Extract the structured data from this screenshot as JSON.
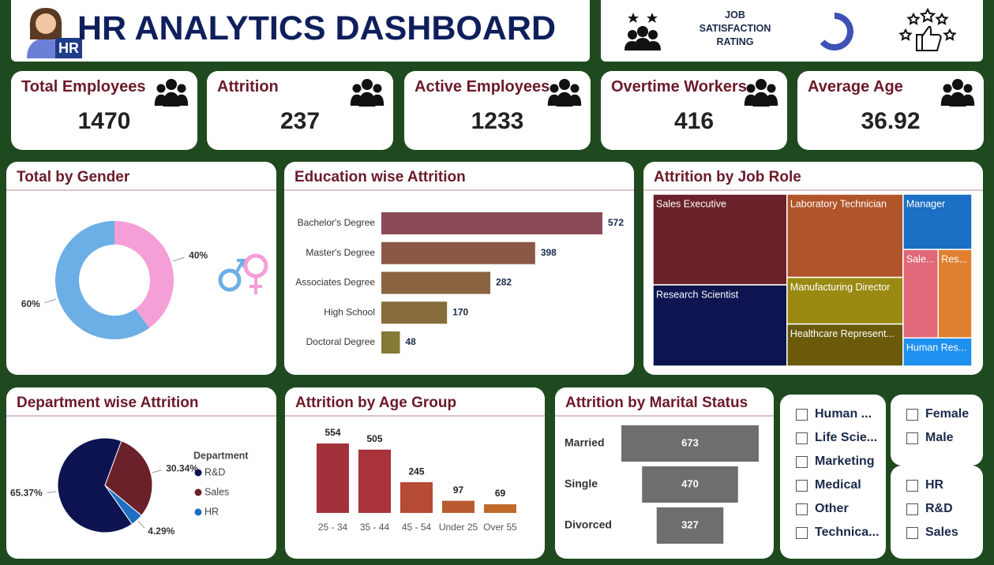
{
  "header": {
    "title": "HR ANALYTICS DASHBOARD",
    "badge": "HR"
  },
  "job_satisfaction": {
    "label": "JOB SATISFACTION RATING"
  },
  "kpis": [
    {
      "label": "Total Employees",
      "value": 1470
    },
    {
      "label": "Attrition",
      "value": 237
    },
    {
      "label": "Active Employees",
      "value": 1233
    },
    {
      "label": "Overtime Workers",
      "value": 416
    },
    {
      "label": "Average Age",
      "value": 36.92
    }
  ],
  "chart_data": [
    {
      "type": "donut",
      "title": "Total by Gender",
      "values": [
        40,
        60
      ],
      "value_labels": [
        "40%",
        "60%"
      ],
      "colors": [
        "#f59fd7",
        "#6caee6"
      ]
    },
    {
      "type": "hbar",
      "title": "Education wise Attrition",
      "categories": [
        "Bachelor's Degree",
        "Master's Degree",
        "Associates Degree",
        "High School",
        "Doctoral Degree"
      ],
      "values": [
        572,
        398,
        282,
        170,
        48
      ],
      "colors": [
        "#8a4a56",
        "#8b5848",
        "#8a6440",
        "#856c3a",
        "#857a36"
      ]
    },
    {
      "type": "treemap",
      "title": "Attrition by Job Role",
      "categories": [
        "Sales Executive",
        "Research Scientist",
        "Laboratory Technician",
        "Manufacturing Director",
        "Healthcare Represent...",
        "Manager",
        "Sale...",
        "Res...",
        "Human Res..."
      ],
      "values": [
        326,
        292,
        259,
        145,
        131,
        102,
        83,
        80,
        52
      ],
      "colors": [
        "#6b2129",
        "#0d1450",
        "#b0542a",
        "#9a8a12",
        "#6a5a0a",
        "#1b6fc4",
        "#e06878",
        "#e08030",
        "#1e90f0"
      ]
    },
    {
      "type": "pie",
      "title": "Department wise Attrition",
      "legend_title": "Department",
      "categories": [
        "R&D",
        "Sales",
        "HR"
      ],
      "values": [
        65.37,
        30.34,
        4.29
      ],
      "value_labels": [
        "65.37%",
        "30.34%",
        "4.29%"
      ],
      "colors": [
        "#0d1250",
        "#6b2129",
        "#1e6fc4"
      ]
    },
    {
      "type": "bar",
      "title": "Attrition by Age Group",
      "categories": [
        "25 - 34",
        "35 - 44",
        "45 - 54",
        "Under 25",
        "Over 55"
      ],
      "values": [
        554,
        505,
        245,
        97,
        69
      ],
      "colors": [
        "#a3313c",
        "#a8333a",
        "#b54a35",
        "#b95a30",
        "#c06a2a"
      ]
    },
    {
      "type": "funnel",
      "title": "Attrition by Marital Status",
      "categories": [
        "Married",
        "Single",
        "Divorced"
      ],
      "values": [
        673,
        470,
        327
      ],
      "color": "#6e6e6e"
    }
  ],
  "slicers": [
    {
      "items": [
        "Human ...",
        "Life Scie...",
        "Marketing",
        "Medical",
        "Other",
        "Technica..."
      ]
    },
    {
      "items": [
        "Female",
        "Male"
      ]
    },
    {
      "items": [
        "HR",
        "R&D",
        "Sales"
      ]
    }
  ]
}
